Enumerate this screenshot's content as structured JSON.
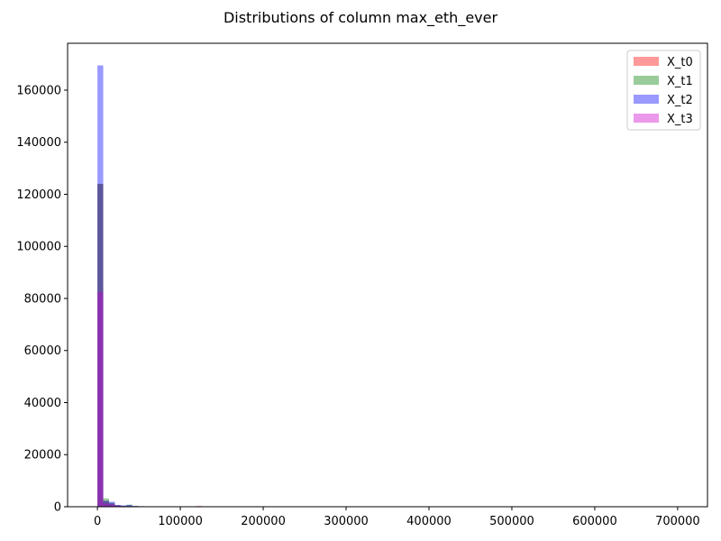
{
  "chart_data": {
    "type": "histogram",
    "title": "Distributions of column max_eth_ever",
    "xlabel": "",
    "ylabel": "",
    "xlim": [
      -36000,
      736000
    ],
    "ylim": [
      0,
      178000
    ],
    "x_ticks": [
      0,
      100000,
      200000,
      300000,
      400000,
      500000,
      600000,
      700000
    ],
    "y_ticks": [
      0,
      20000,
      40000,
      60000,
      80000,
      100000,
      120000,
      140000,
      160000
    ],
    "bin_edges": [
      0,
      7000,
      14000,
      21000,
      28000,
      35000,
      42000,
      49000,
      56000,
      63000,
      70000,
      77000,
      84000,
      91000,
      98000,
      105000,
      112000,
      119000,
      126000,
      133000
    ],
    "grid": false,
    "legend_position": "upper right",
    "series": [
      {
        "name": "X_t0",
        "color": "#ff0000",
        "opacity": 0.4,
        "values": [
          124000,
          2200,
          1200,
          500,
          300,
          250,
          200,
          150,
          120,
          100,
          80,
          60,
          50,
          40,
          30,
          25,
          20,
          300,
          15
        ]
      },
      {
        "name": "X_t1",
        "color": "#008000",
        "opacity": 0.4,
        "values": [
          124000,
          3200,
          1500,
          600,
          400,
          800,
          300,
          200,
          150,
          120,
          90,
          70,
          60,
          50,
          40,
          30,
          25,
          20,
          15
        ]
      },
      {
        "name": "X_t2",
        "color": "#0000ff",
        "opacity": 0.4,
        "values": [
          169500,
          2300,
          1900,
          700,
          500,
          700,
          300,
          200,
          150,
          100,
          80,
          60,
          50,
          40,
          30,
          25,
          20,
          15,
          10
        ]
      },
      {
        "name": "X_t3",
        "color": "#cc00cc",
        "opacity": 0.4,
        "values": [
          82500,
          1200,
          900,
          400,
          200,
          150,
          100,
          80,
          60,
          50,
          40,
          30,
          25,
          20,
          15,
          10,
          10,
          10,
          10
        ]
      }
    ]
  }
}
